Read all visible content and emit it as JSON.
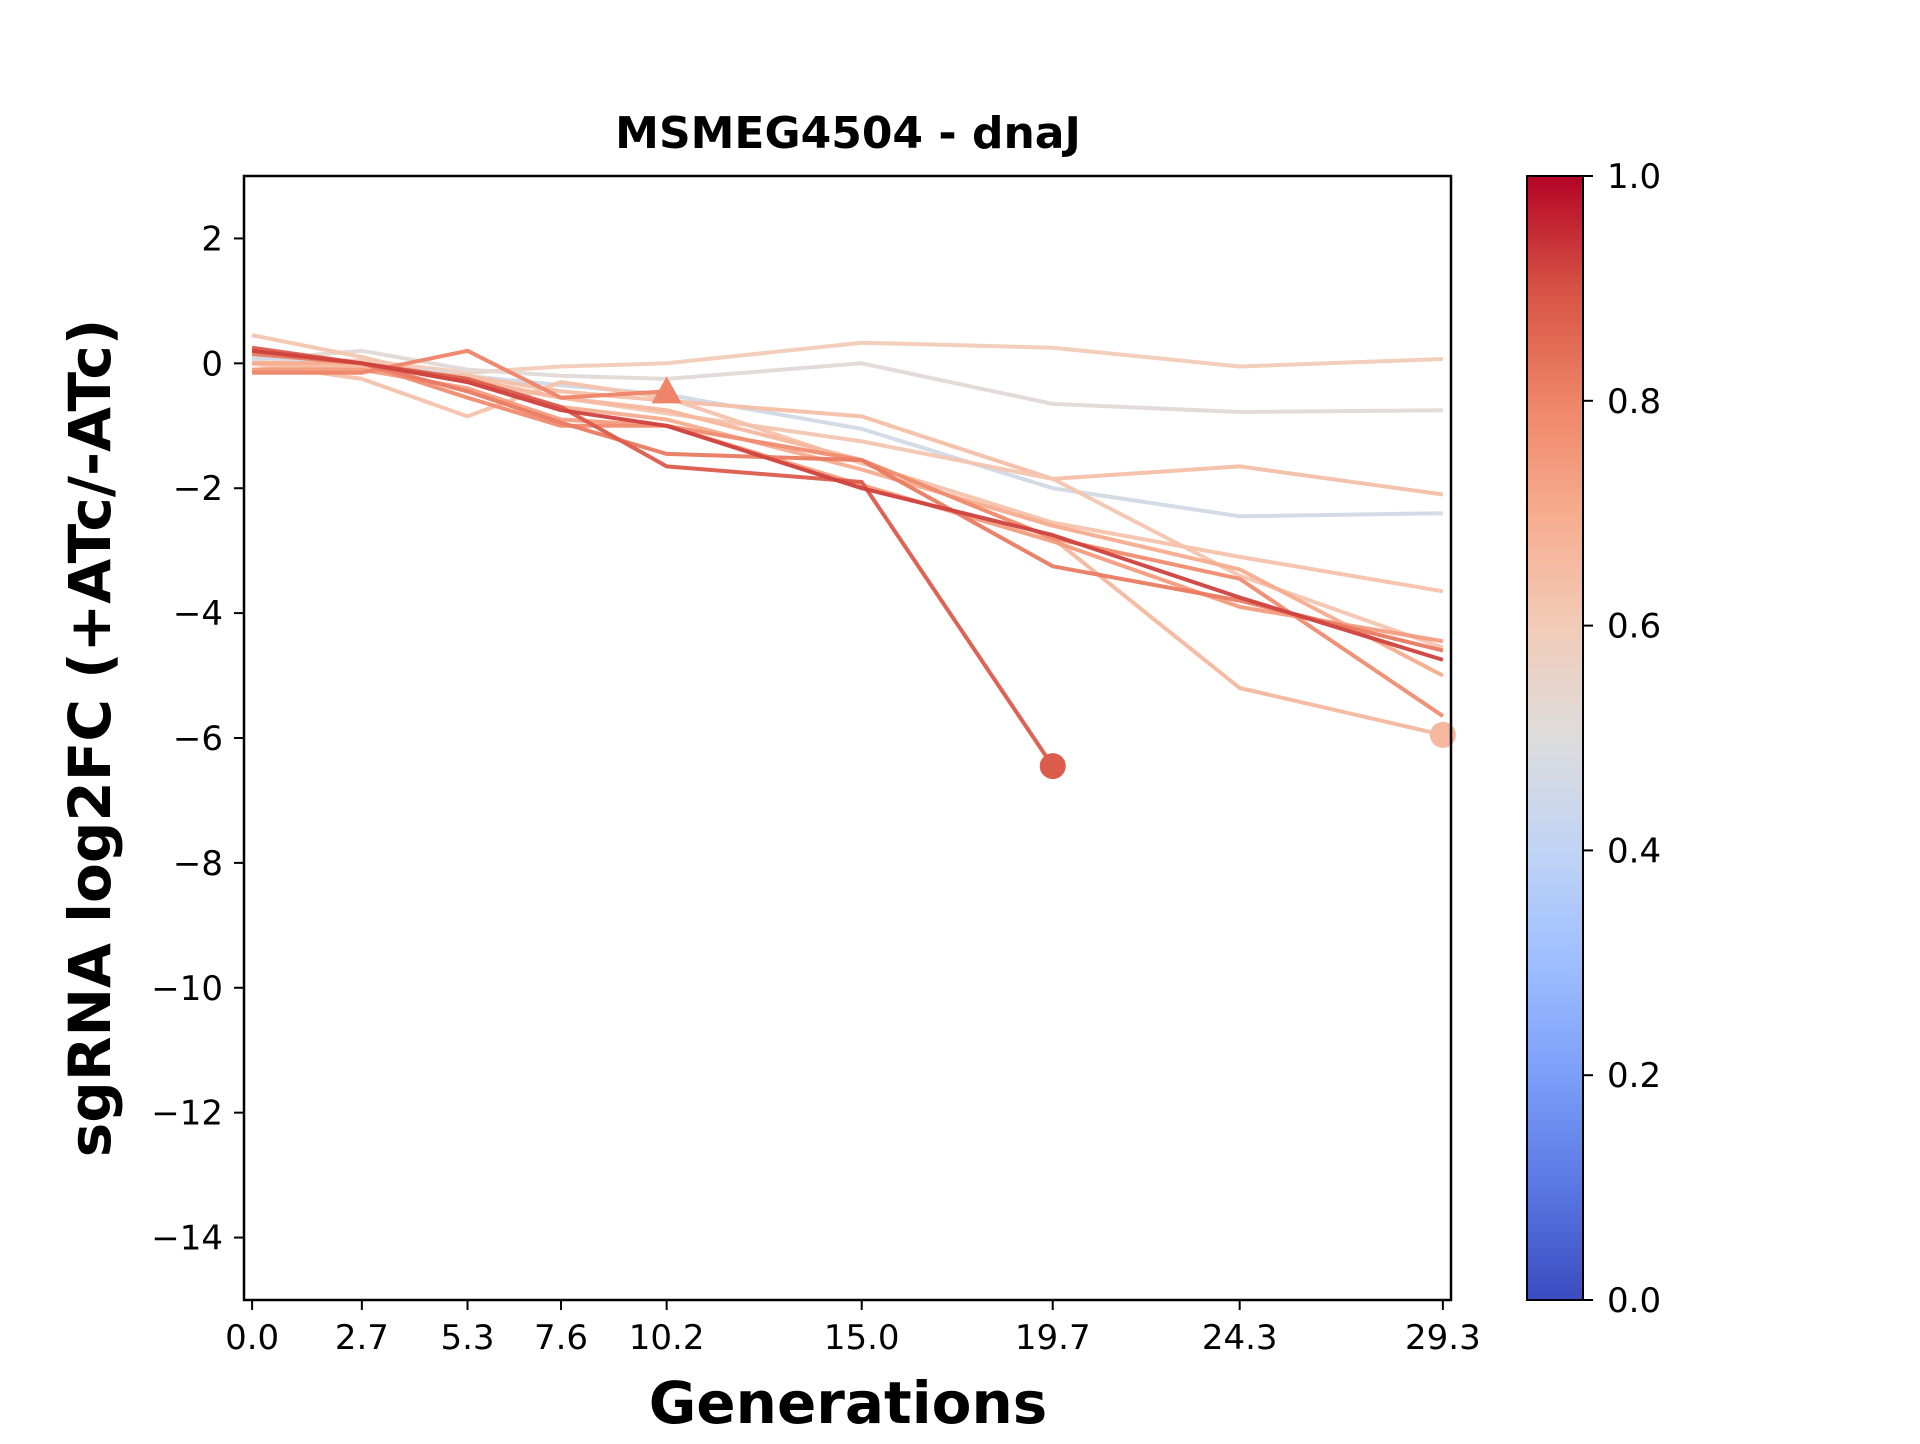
{
  "chart_data": {
    "type": "line",
    "title": "MSMEG4504 - dnaJ",
    "xlabel": "Generations",
    "ylabel": "sgRNA log2FC (+ATc/-ATc)",
    "x": [
      0.0,
      2.7,
      5.3,
      7.6,
      10.2,
      15.0,
      19.7,
      24.3,
      29.3
    ],
    "x_tick_labels": [
      "0.0",
      "2.7",
      "5.3",
      "7.6",
      "10.2",
      "15.0",
      "19.7",
      "24.3",
      "29.3"
    ],
    "xlim": [
      -0.2,
      29.5
    ],
    "ylim": [
      -15,
      3
    ],
    "y_ticks": [
      2,
      0,
      -2,
      -4,
      -6,
      -8,
      -10,
      -12,
      -14
    ],
    "y_tick_labels": [
      "2",
      "0",
      "−2",
      "−4",
      "−6",
      "−8",
      "−10",
      "−12",
      "−14"
    ],
    "grid": false,
    "colorbar": {
      "colormap": "coolwarm",
      "range": [
        0.0,
        1.0
      ],
      "ticks": [
        0.0,
        0.2,
        0.4,
        0.6,
        0.8,
        1.0
      ],
      "tick_labels": [
        "0.0",
        "0.2",
        "0.4",
        "0.6",
        "0.8",
        "1.0"
      ]
    },
    "series": [
      {
        "color_value": 0.6,
        "values": [
          0.0,
          0.05,
          -0.15,
          -0.05,
          0.0,
          0.33,
          0.25,
          -0.05,
          0.07
        ],
        "end_marker": "none"
      },
      {
        "color_value": 0.52,
        "values": [
          0.05,
          0.2,
          -0.1,
          -0.2,
          -0.25,
          0.0,
          -0.65,
          -0.78,
          -0.75
        ],
        "end_marker": "none"
      },
      {
        "color_value": 0.46,
        "values": [
          0.1,
          0.0,
          -0.2,
          -0.35,
          -0.5,
          -1.05,
          -2.0,
          -2.45,
          -2.4
        ],
        "end_marker": "none"
      },
      {
        "color_value": 0.64,
        "values": [
          0.0,
          -0.1,
          -0.2,
          -0.45,
          -0.6,
          -0.85,
          -1.85,
          -1.65,
          -2.1
        ],
        "end_marker": "none"
      },
      {
        "color_value": 0.62,
        "values": [
          0.45,
          0.1,
          -0.3,
          -0.55,
          -0.8,
          -1.25,
          -1.85,
          -3.4,
          -4.55
        ],
        "end_marker": "none"
      },
      {
        "color_value": 0.63,
        "values": [
          0.0,
          -0.25,
          -0.85,
          -0.3,
          -0.55,
          -1.6,
          -2.55,
          -3.1,
          -3.65
        ],
        "end_marker": "none"
      },
      {
        "color_value": 0.66,
        "values": [
          -0.1,
          -0.05,
          -0.25,
          -0.55,
          -0.75,
          -1.55,
          -2.8,
          -5.2,
          -5.95
        ],
        "end_marker": "circle"
      },
      {
        "color_value": 0.7,
        "values": [
          0.0,
          0.0,
          -0.3,
          -0.7,
          -0.9,
          -1.7,
          -2.6,
          -3.3,
          -5.0
        ],
        "end_marker": "none"
      },
      {
        "color_value": 0.74,
        "values": [
          -0.1,
          -0.1,
          -0.4,
          -0.9,
          -1.0,
          -1.95,
          -2.85,
          -3.9,
          -4.45
        ],
        "end_marker": "none"
      },
      {
        "color_value": 0.78,
        "values": [
          0.2,
          0.0,
          -0.55,
          -1.0,
          -1.0,
          -1.55,
          -2.8,
          -3.45,
          -5.65
        ],
        "end_marker": "none"
      },
      {
        "color_value": 0.8,
        "values": [
          -0.15,
          -0.15,
          0.2,
          -0.55,
          -0.45,
          null,
          null,
          null,
          null
        ],
        "end_marker": "triangle"
      },
      {
        "color_value": 0.82,
        "values": [
          0.15,
          0.0,
          -0.45,
          -0.95,
          -1.45,
          -1.55,
          -3.25,
          -3.8,
          -4.6
        ],
        "end_marker": "none"
      },
      {
        "color_value": 0.88,
        "values": [
          0.25,
          0.0,
          -0.25,
          -0.7,
          -1.65,
          -1.9,
          -6.45,
          null,
          null
        ],
        "end_marker": "circle"
      },
      {
        "color_value": 0.92,
        "values": [
          0.2,
          0.0,
          -0.3,
          -0.75,
          -1.0,
          -2.0,
          -2.75,
          -3.75,
          -4.75
        ],
        "end_marker": "none"
      }
    ]
  }
}
